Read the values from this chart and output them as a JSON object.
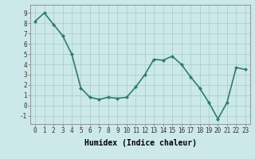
{
  "x": [
    0,
    1,
    2,
    3,
    4,
    5,
    6,
    7,
    8,
    9,
    10,
    11,
    12,
    13,
    14,
    15,
    16,
    17,
    18,
    19,
    20,
    21,
    22,
    23
  ],
  "y": [
    8.2,
    9.0,
    7.9,
    6.8,
    5.0,
    1.7,
    0.8,
    0.6,
    0.8,
    0.7,
    0.8,
    1.8,
    3.0,
    4.5,
    4.4,
    4.8,
    4.0,
    2.8,
    1.7,
    0.3,
    -1.3,
    0.3,
    3.7,
    3.5
  ],
  "line_color": "#2e7d6e",
  "marker": "D",
  "marker_size": 2,
  "bg_color": "#cce8e8",
  "grid_color": "#aad0d0",
  "xlabel": "Humidex (Indice chaleur)",
  "xlim": [
    -0.5,
    23.5
  ],
  "ylim": [
    -1.8,
    9.8
  ],
  "yticks": [
    -1,
    0,
    1,
    2,
    3,
    4,
    5,
    6,
    7,
    8,
    9
  ],
  "xticks": [
    0,
    1,
    2,
    3,
    4,
    5,
    6,
    7,
    8,
    9,
    10,
    11,
    12,
    13,
    14,
    15,
    16,
    17,
    18,
    19,
    20,
    21,
    22,
    23
  ],
  "tick_fontsize": 5.5,
  "label_fontsize": 7,
  "line_width": 1.2
}
